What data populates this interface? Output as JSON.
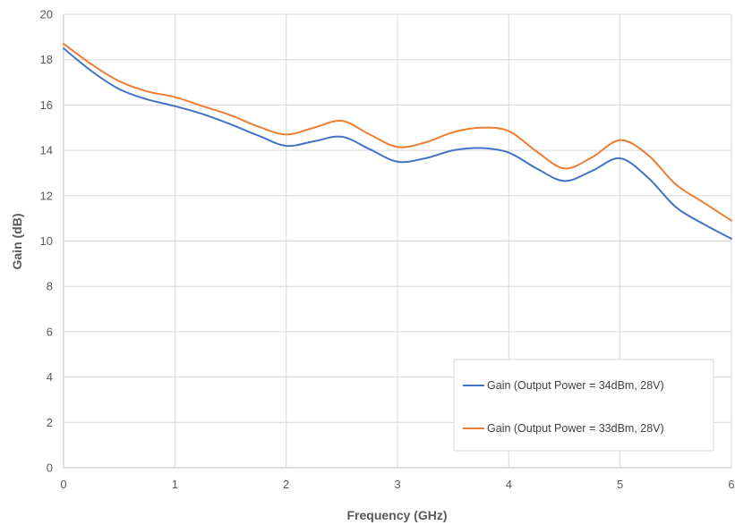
{
  "chart_data": {
    "type": "line",
    "title": "",
    "xlabel": "Frequency (GHz)",
    "ylabel": "Gain (dB)",
    "xlim": [
      0,
      6
    ],
    "ylim": [
      0,
      20
    ],
    "x_ticks": [
      "0",
      "1",
      "2",
      "3",
      "4",
      "5",
      "6"
    ],
    "y_ticks": [
      "0",
      "2",
      "4",
      "6",
      "8",
      "10",
      "12",
      "14",
      "16",
      "18",
      "20"
    ],
    "grid": true,
    "legend_position": "bottom-right",
    "series": [
      {
        "name": "Gain (Output Power = 34dBm, 28V)",
        "color": "#4472C4",
        "points": [
          [
            0,
            18.5
          ],
          [
            0.25,
            17.5
          ],
          [
            0.5,
            16.7
          ],
          [
            0.75,
            16.25
          ],
          [
            1.0,
            15.95
          ],
          [
            1.25,
            15.6
          ],
          [
            1.5,
            15.15
          ],
          [
            1.75,
            14.65
          ],
          [
            2.0,
            14.2
          ],
          [
            2.25,
            14.4
          ],
          [
            2.5,
            14.6
          ],
          [
            2.75,
            14.05
          ],
          [
            3.0,
            13.5
          ],
          [
            3.25,
            13.65
          ],
          [
            3.5,
            14.0
          ],
          [
            3.75,
            14.1
          ],
          [
            4.0,
            13.9
          ],
          [
            4.25,
            13.2
          ],
          [
            4.5,
            12.65
          ],
          [
            4.75,
            13.1
          ],
          [
            5.0,
            13.65
          ],
          [
            5.25,
            12.8
          ],
          [
            5.5,
            11.5
          ],
          [
            5.75,
            10.75
          ],
          [
            6.0,
            10.1
          ]
        ]
      },
      {
        "name": "Gain (Output Power = 33dBm, 28V)",
        "color": "#ED7D31",
        "points": [
          [
            0,
            18.7
          ],
          [
            0.25,
            17.8
          ],
          [
            0.5,
            17.05
          ],
          [
            0.75,
            16.6
          ],
          [
            1.0,
            16.35
          ],
          [
            1.25,
            15.95
          ],
          [
            1.5,
            15.55
          ],
          [
            1.75,
            15.05
          ],
          [
            2.0,
            14.7
          ],
          [
            2.25,
            15.0
          ],
          [
            2.5,
            15.3
          ],
          [
            2.75,
            14.7
          ],
          [
            3.0,
            14.15
          ],
          [
            3.25,
            14.35
          ],
          [
            3.5,
            14.8
          ],
          [
            3.75,
            15.0
          ],
          [
            4.0,
            14.85
          ],
          [
            4.25,
            13.95
          ],
          [
            4.5,
            13.2
          ],
          [
            4.75,
            13.7
          ],
          [
            5.0,
            14.45
          ],
          [
            5.25,
            13.8
          ],
          [
            5.5,
            12.5
          ],
          [
            5.75,
            11.7
          ],
          [
            6.0,
            10.9
          ]
        ]
      }
    ]
  }
}
